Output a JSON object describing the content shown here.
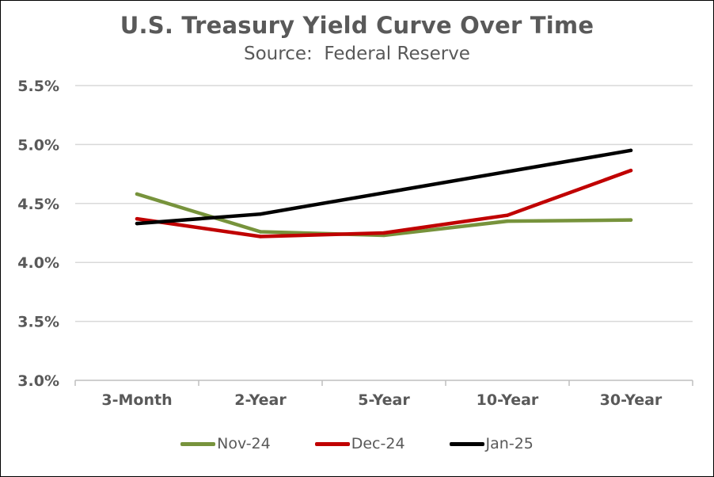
{
  "chart_data": {
    "type": "line",
    "title": "U.S. Treasury Yield Curve Over Time",
    "subtitle": "Source:  Federal Reserve",
    "categories": [
      "3-Month",
      "2-Year",
      "5-Year",
      "10-Year",
      "30-Year"
    ],
    "yticks": [
      "5.5%",
      "5.0%",
      "4.5%",
      "4.0%",
      "3.5%",
      "3.0%"
    ],
    "ylim": [
      3.0,
      5.5
    ],
    "grid": true,
    "legend_position": "bottom",
    "series": [
      {
        "name": "Nov-24",
        "color": "#77933c",
        "values": [
          4.58,
          4.26,
          4.23,
          4.35,
          4.36
        ]
      },
      {
        "name": "Dec-24",
        "color": "#c00000",
        "values": [
          4.37,
          4.22,
          4.25,
          4.4,
          4.78
        ]
      },
      {
        "name": "Jan-25",
        "color": "#000000",
        "values": [
          4.33,
          4.41,
          4.59,
          4.77,
          4.95
        ]
      }
    ]
  }
}
